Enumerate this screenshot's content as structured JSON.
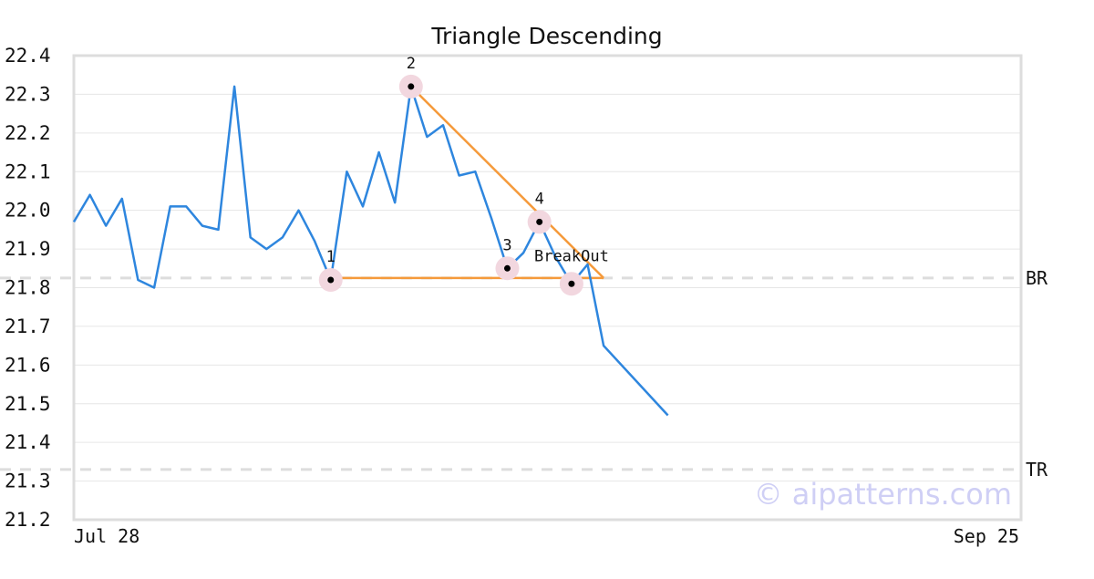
{
  "colors": {
    "price_line": "#2e86de",
    "pattern_line": "#f59a3b",
    "grid": "#e6e6e6",
    "frame": "#dddddd",
    "ref_line": "#dddddd",
    "marker_halo": "#f2d7df",
    "marker_dot": "#000000",
    "watermark": "#cfcff5"
  },
  "watermark": "© aipatterns.com",
  "chart_data": {
    "type": "line",
    "title": "Triangle Descending",
    "xlabel": "",
    "ylabel": "",
    "ylim": [
      21.2,
      22.4
    ],
    "yticks": [
      "21.2",
      "21.3",
      "21.4",
      "21.5",
      "21.6",
      "21.7",
      "21.8",
      "21.9",
      "22.0",
      "22.1",
      "22.2",
      "22.3",
      "22.4"
    ],
    "x_range": [
      "2023-07-28",
      "2023-09-25"
    ],
    "x_tick_labels": [
      "Jul 28",
      "Sep 25"
    ],
    "grid": true,
    "series": [
      {
        "values": [
          [
            "2023-07-28",
            21.97
          ],
          [
            "2023-07-29",
            22.04
          ],
          [
            "2023-07-30",
            21.96
          ],
          [
            "2023-07-31",
            22.03
          ],
          [
            "2023-08-01",
            21.82
          ],
          [
            "2023-08-02",
            21.8
          ],
          [
            "2023-08-03",
            22.01
          ],
          [
            "2023-08-04",
            22.01
          ],
          [
            "2023-08-05",
            21.96
          ],
          [
            "2023-08-06",
            21.95
          ],
          [
            "2023-08-07",
            22.32
          ],
          [
            "2023-08-08",
            21.93
          ],
          [
            "2023-08-09",
            21.9
          ],
          [
            "2023-08-10",
            21.93
          ],
          [
            "2023-08-11",
            22.0
          ],
          [
            "2023-08-12",
            21.92
          ],
          [
            "2023-08-13",
            21.82
          ],
          [
            "2023-08-14",
            22.1
          ],
          [
            "2023-08-15",
            22.01
          ],
          [
            "2023-08-16",
            22.15
          ],
          [
            "2023-08-17",
            22.02
          ],
          [
            "2023-08-18",
            22.32
          ],
          [
            "2023-08-19",
            22.19
          ],
          [
            "2023-08-20",
            22.22
          ],
          [
            "2023-08-21",
            22.09
          ],
          [
            "2023-08-22",
            22.1
          ],
          [
            "2023-08-23",
            21.98
          ],
          [
            "2023-08-24",
            21.85
          ],
          [
            "2023-08-25",
            21.89
          ],
          [
            "2023-08-26",
            21.97
          ],
          [
            "2023-08-27",
            21.88
          ],
          [
            "2023-08-28",
            21.81
          ],
          [
            "2023-08-29",
            21.86
          ],
          [
            "2023-08-30",
            21.65
          ],
          [
            "2023-09-03",
            21.47
          ]
        ]
      }
    ],
    "pattern_lines": [
      {
        "from": [
          "2023-08-13",
          21.825
        ],
        "to": [
          "2023-08-30",
          21.825
        ]
      },
      {
        "from": [
          "2023-08-18",
          22.32
        ],
        "to": [
          "2023-08-30",
          21.825
        ]
      }
    ],
    "points": [
      {
        "label": "1",
        "x": "2023-08-13",
        "y": 21.82
      },
      {
        "label": "2",
        "x": "2023-08-18",
        "y": 22.32
      },
      {
        "label": "3",
        "x": "2023-08-24",
        "y": 21.85
      },
      {
        "label": "4",
        "x": "2023-08-26",
        "y": 21.97
      },
      {
        "label": "BreakOut",
        "x": "2023-08-28",
        "y": 21.81
      }
    ],
    "reference_lines": [
      {
        "label": "BR",
        "y": 21.825
      },
      {
        "label": "TR",
        "y": 21.33
      }
    ]
  }
}
